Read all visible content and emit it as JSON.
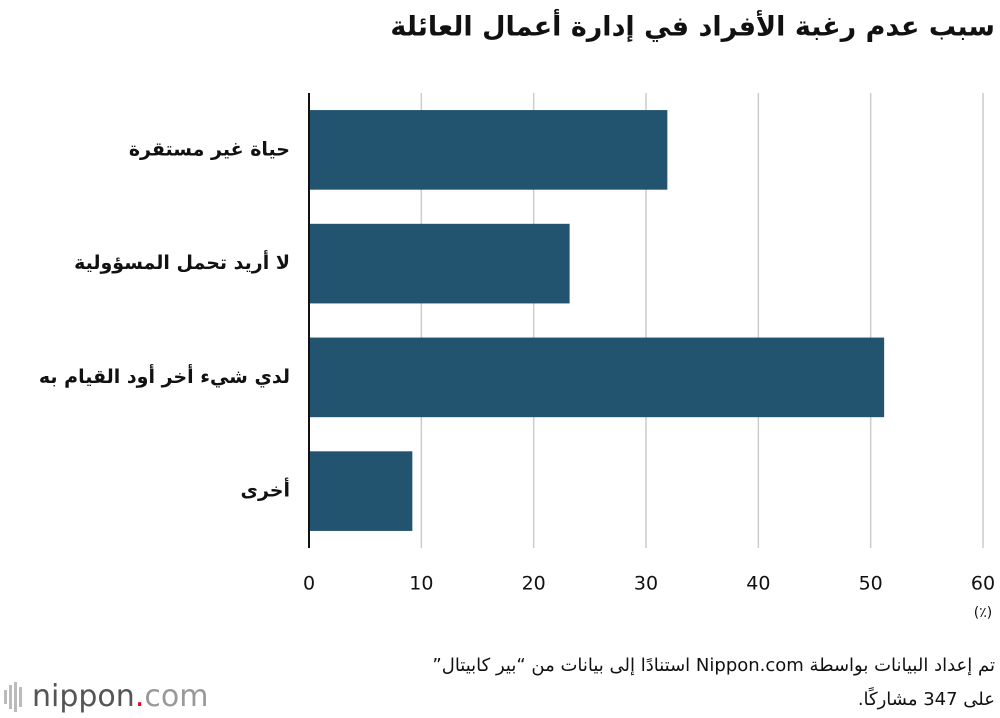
{
  "chart_data": {
    "type": "bar",
    "orientation": "horizontal",
    "title": "سبب عدم رغبة الأفراد في إدارة أعمال العائلة",
    "categories": [
      "حياة غير مستقرة",
      "لا أريد تحمل المسؤولية",
      "لدي شيء أخر أود القيام به",
      "أخرى"
    ],
    "values": [
      31.9,
      23.2,
      51.2,
      9.2
    ],
    "color": "#23546f",
    "xlim": [
      0,
      60
    ],
    "xticks": [
      0,
      10,
      20,
      30,
      40,
      50,
      60
    ],
    "grid": true,
    "x_unit": "(٪)",
    "source": [
      "تم إعداد البيانات بواسطة Nippon.com استنادًا إلى بيانات من “بير كابيتال”",
      "على 347 مشاركًا."
    ],
    "logo": {
      "name": "nippon",
      "dot": ".",
      "suffix": "com"
    }
  }
}
